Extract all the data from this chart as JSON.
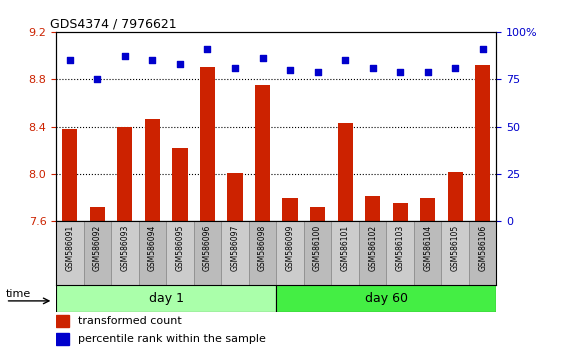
{
  "title": "GDS4374 / 7976621",
  "samples": [
    "GSM586091",
    "GSM586092",
    "GSM586093",
    "GSM586094",
    "GSM586095",
    "GSM586096",
    "GSM586097",
    "GSM586098",
    "GSM586099",
    "GSM586100",
    "GSM586101",
    "GSM586102",
    "GSM586103",
    "GSM586104",
    "GSM586105",
    "GSM586106"
  ],
  "red_values": [
    8.38,
    7.72,
    8.4,
    8.46,
    8.22,
    8.9,
    8.01,
    8.75,
    7.8,
    7.72,
    8.43,
    7.81,
    7.75,
    7.8,
    8.02,
    8.92
  ],
  "blue_pct": [
    85,
    75,
    87,
    85,
    83,
    91,
    81,
    86,
    80,
    79,
    85,
    81,
    79,
    79,
    81,
    91
  ],
  "ylim_left": [
    7.6,
    9.2
  ],
  "yticks_left": [
    7.6,
    8.0,
    8.4,
    8.8,
    9.2
  ],
  "yticks_right": [
    0,
    25,
    50,
    75,
    100
  ],
  "day1_count": 8,
  "bar_color": "#cc2200",
  "dot_color": "#0000cc",
  "bar_width": 0.55,
  "grid_lines": [
    8.0,
    8.4,
    8.8
  ],
  "background_color": "#ffffff",
  "tick_label_color_left": "#cc2200",
  "tick_label_color_right": "#0000cc",
  "day1_color": "#aaffaa",
  "day60_color": "#44ee44"
}
